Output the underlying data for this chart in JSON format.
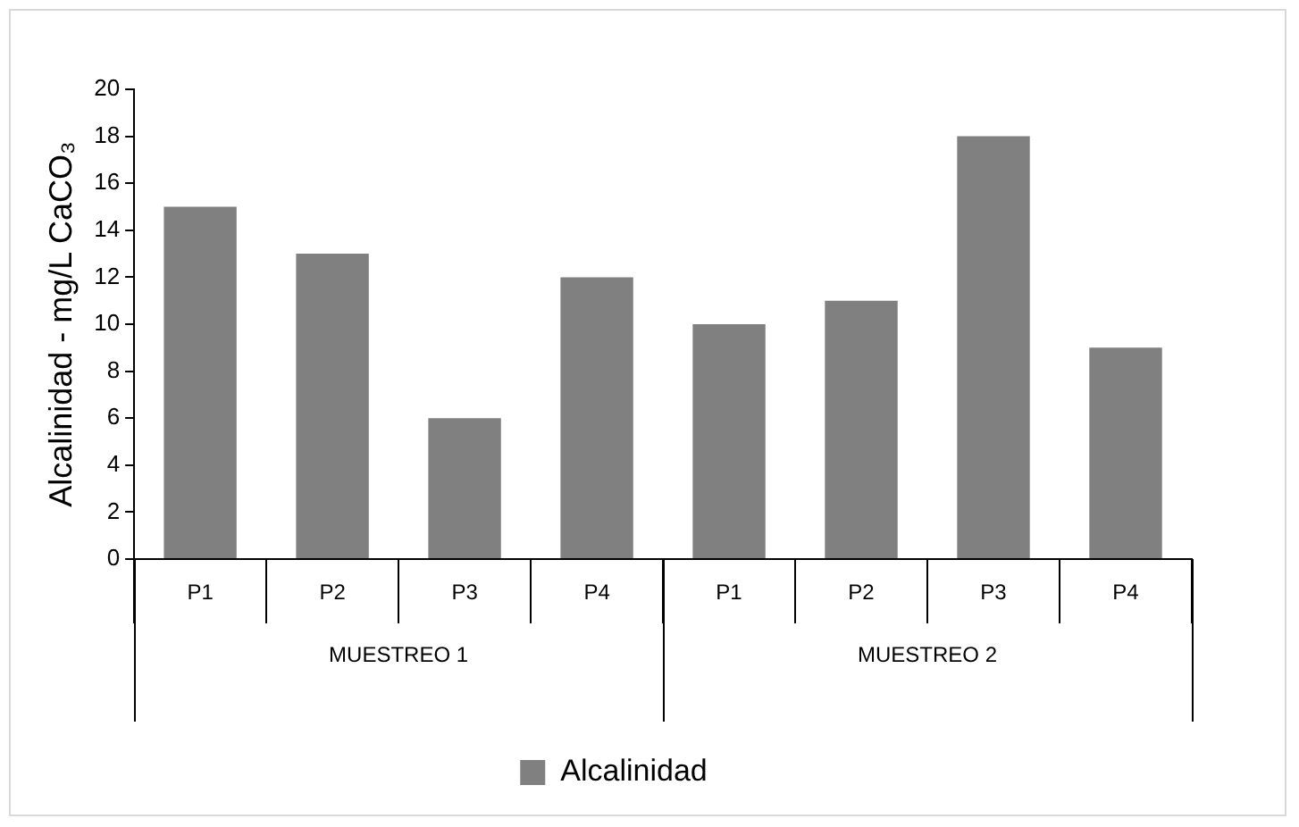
{
  "chart_data": {
    "type": "bar",
    "ylabel": "Alcalinidad - mg/L CaCO₃",
    "categories": [
      "P1",
      "P2",
      "P3",
      "P4",
      "P1",
      "P2",
      "P3",
      "P4"
    ],
    "series": [
      {
        "name": "Alcalinidad",
        "color": "#808080",
        "values": [
          15,
          13,
          6,
          12,
          10,
          11,
          18,
          9
        ]
      }
    ],
    "annotations": [
      "MUESTREO 1",
      "MUESTREO 2"
    ],
    "ylim": [
      0,
      20
    ],
    "yticks": [
      0,
      2,
      4,
      6,
      8,
      10,
      12,
      14,
      16,
      18,
      20
    ],
    "grid": false,
    "legend": "bottom"
  }
}
